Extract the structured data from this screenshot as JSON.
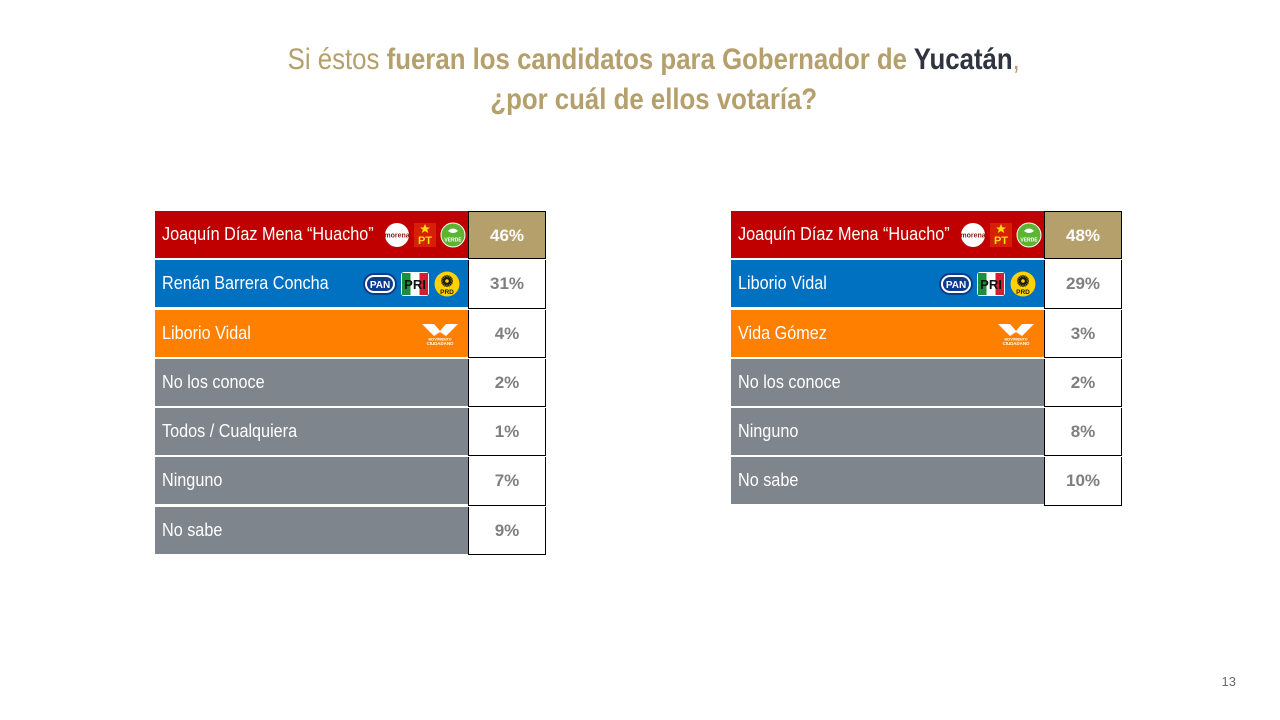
{
  "title": {
    "part1": "Si éstos ",
    "part2": "fueran los candidatos para Gobernador de ",
    "part3": "Yucatán",
    "part4": ",",
    "line2": "¿por cuál de ellos votaría?"
  },
  "colors": {
    "gold": "#b59f6b",
    "dark_text": "#2f3440",
    "morena_red": "#c00000",
    "pan_blue": "#0070c0",
    "mc_orange": "#ff7f00",
    "other_gray": "#7f858c",
    "value_text": "#7f7f7f"
  },
  "logos": {
    "morena": "morena",
    "pt": "PT",
    "pvem": "VERDE",
    "pan": "PAN",
    "pri": "PRI",
    "prd": "PRD",
    "mc_top": "MOVIMIENTO",
    "mc_bottom": "CIUDADANO"
  },
  "chart_data": [
    {
      "type": "table",
      "rows": [
        {
          "label": "Joaquín Díaz Mena “Huacho”",
          "value": "46%",
          "party": "morena",
          "logos": [
            "morena-logo",
            "pt-logo",
            "pvem-logo"
          ],
          "highlight": true
        },
        {
          "label": "Renán Barrera Concha",
          "value": "31%",
          "party": "pan",
          "logos": [
            "pan-logo",
            "pri-logo",
            "prd-logo"
          ],
          "highlight": false
        },
        {
          "label": "Liborio Vidal",
          "value": "4%",
          "party": "mc",
          "logos": [
            "mc-logo"
          ],
          "highlight": false
        },
        {
          "label": "No los conoce",
          "value": "2%",
          "party": "other",
          "logos": [],
          "highlight": false
        },
        {
          "label": "Todos / Cualquiera",
          "value": "1%",
          "party": "other",
          "logos": [],
          "highlight": false
        },
        {
          "label": "Ninguno",
          "value": "7%",
          "party": "other",
          "logos": [],
          "highlight": false
        },
        {
          "label": "No sabe",
          "value": "9%",
          "party": "other",
          "logos": [],
          "highlight": false
        }
      ]
    },
    {
      "type": "table",
      "rows": [
        {
          "label": "Joaquín Díaz Mena “Huacho”",
          "value": "48%",
          "party": "morena",
          "logos": [
            "morena-logo",
            "pt-logo",
            "pvem-logo"
          ],
          "highlight": true
        },
        {
          "label": "Liborio Vidal",
          "value": "29%",
          "party": "pan",
          "logos": [
            "pan-logo",
            "pri-logo",
            "prd-logo"
          ],
          "highlight": false
        },
        {
          "label": "Vida Gómez",
          "value": "3%",
          "party": "mc",
          "logos": [
            "mc-logo"
          ],
          "highlight": false
        },
        {
          "label": "No los conoce",
          "value": "2%",
          "party": "other",
          "logos": [],
          "highlight": false
        },
        {
          "label": "Ninguno",
          "value": "8%",
          "party": "other",
          "logos": [],
          "highlight": false
        },
        {
          "label": "No sabe",
          "value": "10%",
          "party": "other",
          "logos": [],
          "highlight": false
        }
      ]
    }
  ],
  "page_number": "13"
}
